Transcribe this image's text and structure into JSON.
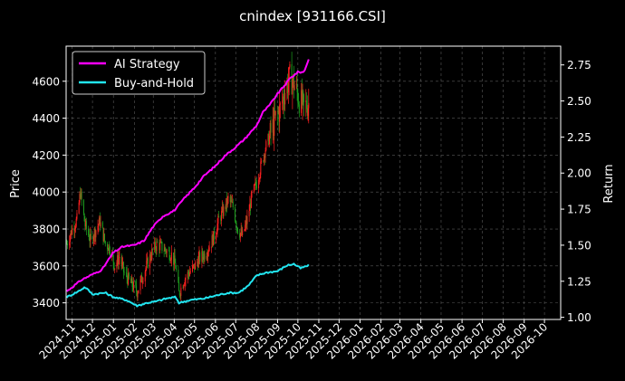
{
  "chart_data": {
    "type": "line",
    "title": "cnindex [931166.CSI]",
    "ylabel": "Price",
    "y2label": "Return",
    "grid": true,
    "legend_position": "top-left",
    "x_ticks": [
      "2024-11",
      "2024-12",
      "2025-01",
      "2025-02",
      "2025-03",
      "2025-04",
      "2025-05",
      "2025-06",
      "2025-07",
      "2025-08",
      "2025-09",
      "2025-10",
      "2025-11",
      "2025-12",
      "2026-01",
      "2026-02",
      "2026-03",
      "2026-04",
      "2026-05",
      "2026-06",
      "2026-07",
      "2026-08",
      "2026-09",
      "2026-10"
    ],
    "xlim": [
      "2024-10-23",
      "2026-10-25"
    ],
    "ylim": [
      3310,
      4790
    ],
    "y_ticks": [
      3400,
      3600,
      3800,
      4000,
      4200,
      4400,
      4600
    ],
    "y2lim": [
      0.985,
      2.88
    ],
    "y2_ticks": [
      1.0,
      1.25,
      1.5,
      1.75,
      2.0,
      2.25,
      2.5,
      2.75
    ],
    "candles": {
      "up_color": "#ff2020",
      "down_color": "#1f9f1f",
      "anchors": [
        [
          "2024-10-24",
          3720
        ],
        [
          "2024-11-01",
          3800
        ],
        [
          "2024-11-08",
          3850
        ],
        [
          "2024-11-13",
          4000
        ],
        [
          "2024-11-20",
          3820
        ],
        [
          "2024-11-28",
          3740
        ],
        [
          "2024-12-05",
          3790
        ],
        [
          "2024-12-12",
          3840
        ],
        [
          "2024-12-20",
          3720
        ],
        [
          "2024-12-27",
          3700
        ],
        [
          "2025-01-03",
          3600
        ],
        [
          "2025-01-10",
          3650
        ],
        [
          "2025-01-17",
          3560
        ],
        [
          "2025-01-24",
          3520
        ],
        [
          "2025-02-05",
          3460
        ],
        [
          "2025-02-14",
          3550
        ],
        [
          "2025-02-21",
          3620
        ],
        [
          "2025-02-28",
          3680
        ],
        [
          "2025-03-07",
          3720
        ],
        [
          "2025-03-14",
          3700
        ],
        [
          "2025-03-21",
          3680
        ],
        [
          "2025-03-28",
          3660
        ],
        [
          "2025-04-03",
          3600
        ],
        [
          "2025-04-08",
          3450
        ],
        [
          "2025-04-15",
          3520
        ],
        [
          "2025-04-22",
          3560
        ],
        [
          "2025-04-30",
          3590
        ],
        [
          "2025-05-08",
          3640
        ],
        [
          "2025-05-15",
          3660
        ],
        [
          "2025-05-22",
          3700
        ],
        [
          "2025-05-30",
          3760
        ],
        [
          "2025-06-06",
          3850
        ],
        [
          "2025-06-13",
          3900
        ],
        [
          "2025-06-20",
          3960
        ],
        [
          "2025-06-27",
          3920
        ],
        [
          "2025-07-04",
          3800
        ],
        [
          "2025-07-11",
          3760
        ],
        [
          "2025-07-18",
          3850
        ],
        [
          "2025-07-25",
          3980
        ],
        [
          "2025-08-01",
          4050
        ],
        [
          "2025-08-08",
          4150
        ],
        [
          "2025-08-15",
          4250
        ],
        [
          "2025-08-22",
          4320
        ],
        [
          "2025-08-29",
          4400
        ],
        [
          "2025-09-05",
          4450
        ],
        [
          "2025-09-12",
          4550
        ],
        [
          "2025-09-19",
          4620
        ],
        [
          "2025-09-26",
          4580
        ],
        [
          "2025-10-03",
          4500
        ],
        [
          "2025-10-10",
          4460
        ],
        [
          "2025-10-17",
          4480
        ]
      ]
    },
    "series": [
      {
        "name": "AI Strategy",
        "color": "#ff00ff",
        "axis": "right",
        "values": [
          [
            "2024-10-24",
            1.18
          ],
          [
            "2024-11-15",
            1.26
          ],
          [
            "2024-12-15",
            1.33
          ],
          [
            "2025-01-01",
            1.45
          ],
          [
            "2025-01-15",
            1.49
          ],
          [
            "2025-02-01",
            1.5
          ],
          [
            "2025-02-15",
            1.53
          ],
          [
            "2025-03-01",
            1.63
          ],
          [
            "2025-03-15",
            1.7
          ],
          [
            "2025-04-01",
            1.74
          ],
          [
            "2025-04-15",
            1.82
          ],
          [
            "2025-05-01",
            1.9
          ],
          [
            "2025-05-15",
            1.98
          ],
          [
            "2025-06-01",
            2.05
          ],
          [
            "2025-06-15",
            2.12
          ],
          [
            "2025-07-01",
            2.18
          ],
          [
            "2025-07-15",
            2.24
          ],
          [
            "2025-08-01",
            2.33
          ],
          [
            "2025-08-10",
            2.42
          ],
          [
            "2025-08-20",
            2.47
          ],
          [
            "2025-09-01",
            2.55
          ],
          [
            "2025-09-10",
            2.6
          ],
          [
            "2025-09-20",
            2.66
          ],
          [
            "2025-10-01",
            2.7
          ],
          [
            "2025-10-10",
            2.7
          ],
          [
            "2025-10-17",
            2.79
          ]
        ]
      },
      {
        "name": "Buy-and-Hold",
        "color": "#22e5f0",
        "axis": "right",
        "values": [
          [
            "2024-10-24",
            1.14
          ],
          [
            "2024-11-10",
            1.18
          ],
          [
            "2024-11-20",
            1.21
          ],
          [
            "2024-12-01",
            1.16
          ],
          [
            "2024-12-20",
            1.17
          ],
          [
            "2025-01-01",
            1.14
          ],
          [
            "2025-01-20",
            1.12
          ],
          [
            "2025-02-05",
            1.08
          ],
          [
            "2025-02-20",
            1.1
          ],
          [
            "2025-03-05",
            1.11
          ],
          [
            "2025-03-20",
            1.13
          ],
          [
            "2025-04-03",
            1.14
          ],
          [
            "2025-04-08",
            1.1
          ],
          [
            "2025-04-25",
            1.12
          ],
          [
            "2025-05-15",
            1.13
          ],
          [
            "2025-06-01",
            1.15
          ],
          [
            "2025-06-20",
            1.17
          ],
          [
            "2025-07-05",
            1.17
          ],
          [
            "2025-07-20",
            1.22
          ],
          [
            "2025-08-01",
            1.29
          ],
          [
            "2025-08-15",
            1.31
          ],
          [
            "2025-09-01",
            1.32
          ],
          [
            "2025-09-15",
            1.36
          ],
          [
            "2025-09-25",
            1.37
          ],
          [
            "2025-10-05",
            1.34
          ],
          [
            "2025-10-17",
            1.36
          ]
        ]
      }
    ]
  }
}
